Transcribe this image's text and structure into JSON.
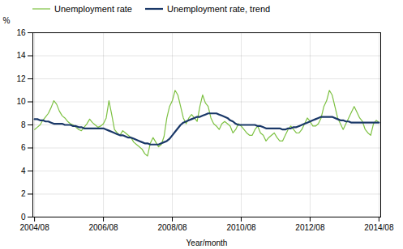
{
  "chart_data": {
    "type": "line",
    "xlabel": "Year/month",
    "ylabel": "%",
    "x": [
      2004.6667,
      2004.7467,
      2004.8267,
      2004.9067,
      2004.9867,
      2005.0667,
      2005.1467,
      2005.2267,
      2005.3067,
      2005.3867,
      2005.4667,
      2005.5467,
      2005.6267,
      2005.7067,
      2005.7867,
      2005.8667,
      2005.9467,
      2006.0267,
      2006.1067,
      2006.1867,
      2006.2667,
      2006.3467,
      2006.4267,
      2006.5067,
      2006.5867,
      2006.6667,
      2006.7467,
      2006.8267,
      2006.9067,
      2006.9867,
      2007.0667,
      2007.1467,
      2007.2267,
      2007.3067,
      2007.3867,
      2007.4667,
      2007.5467,
      2007.6267,
      2007.7067,
      2007.7867,
      2007.8667,
      2007.9467,
      2008.0267,
      2008.1067,
      2008.1867,
      2008.2667,
      2008.3467,
      2008.4267,
      2008.5067,
      2008.5867,
      2008.6667,
      2008.7467,
      2008.8267,
      2008.9067,
      2008.9867,
      2009.0667,
      2009.1467,
      2009.2267,
      2009.3067,
      2009.3867,
      2009.4667,
      2009.5467,
      2009.6267,
      2009.7067,
      2009.7867,
      2009.8667,
      2009.9467,
      2010.0267,
      2010.1067,
      2010.1867,
      2010.2667,
      2010.3467,
      2010.4267,
      2010.5067,
      2010.5867,
      2010.6667,
      2010.7467,
      2010.8267,
      2010.9067,
      2010.9867,
      2011.0667,
      2011.1467,
      2011.2267,
      2011.3067,
      2011.3867,
      2011.4667,
      2011.5467,
      2011.6267,
      2011.7067,
      2011.7867,
      2011.8667,
      2011.9467,
      2012.0267,
      2012.1067,
      2012.1867,
      2012.2667,
      2012.3467,
      2012.4267,
      2012.5067,
      2012.5867,
      2012.6667,
      2012.7467,
      2012.8267,
      2012.9067,
      2012.9867,
      2013.0667,
      2013.1467,
      2013.2267,
      2013.3067,
      2013.3867,
      2013.4667,
      2013.5467,
      2013.6267,
      2013.7067,
      2013.7867,
      2013.8667,
      2013.9467,
      2014.0267,
      2014.1067,
      2014.1867,
      2014.2667,
      2014.3467,
      2014.4267,
      2014.5067,
      2014.5867,
      2014.6667
    ],
    "series": [
      {
        "name": "Unemployment rate",
        "color": "#7dc142",
        "values": [
          7.6,
          7.8,
          8.0,
          8.4,
          8.7,
          9.0,
          9.5,
          10.1,
          9.8,
          9.2,
          8.8,
          8.6,
          8.3,
          8.1,
          8.0,
          7.8,
          7.6,
          7.5,
          7.8,
          8.1,
          8.5,
          8.2,
          8.0,
          7.8,
          7.9,
          8.1,
          8.6,
          10.1,
          8.9,
          7.6,
          7.3,
          7.1,
          7.5,
          7.3,
          7.1,
          6.9,
          6.5,
          6.3,
          6.1,
          5.9,
          5.5,
          5.3,
          6.4,
          6.9,
          6.5,
          6.1,
          6.3,
          7.0,
          8.6,
          9.6,
          10.1,
          11.0,
          10.6,
          9.6,
          8.6,
          8.1,
          8.6,
          8.9,
          8.6,
          8.3,
          9.6,
          10.6,
          9.9,
          9.6,
          8.6,
          8.1,
          7.9,
          7.6,
          8.1,
          8.3,
          8.1,
          7.9,
          7.3,
          7.6,
          8.1,
          7.9,
          7.6,
          7.3,
          7.1,
          7.1,
          7.6,
          7.9,
          7.3,
          7.1,
          6.6,
          6.9,
          7.1,
          7.3,
          6.9,
          6.6,
          6.6,
          7.1,
          7.6,
          7.9,
          7.6,
          7.3,
          7.3,
          7.6,
          8.1,
          8.6,
          8.3,
          7.9,
          7.9,
          8.1,
          8.6,
          9.6,
          10.1,
          11.0,
          10.6,
          9.6,
          8.6,
          8.1,
          7.6,
          8.1,
          8.6,
          9.1,
          9.6,
          9.1,
          8.6,
          8.3,
          7.6,
          7.3,
          7.1,
          8.1,
          8.4,
          8.2
        ]
      },
      {
        "name": "Unemployment rate, trend",
        "color": "#1a3868",
        "values": [
          8.5,
          8.5,
          8.4,
          8.4,
          8.3,
          8.3,
          8.2,
          8.1,
          8.1,
          8.1,
          8.1,
          8.0,
          8.0,
          8.0,
          7.9,
          7.9,
          7.8,
          7.8,
          7.7,
          7.7,
          7.7,
          7.7,
          7.7,
          7.7,
          7.7,
          7.7,
          7.6,
          7.5,
          7.4,
          7.3,
          7.2,
          7.1,
          7.1,
          7.0,
          6.9,
          6.9,
          6.8,
          6.7,
          6.6,
          6.5,
          6.4,
          6.4,
          6.3,
          6.3,
          6.3,
          6.3,
          6.4,
          6.5,
          6.6,
          6.8,
          7.1,
          7.4,
          7.7,
          8.0,
          8.2,
          8.3,
          8.4,
          8.5,
          8.6,
          8.7,
          8.7,
          8.8,
          8.9,
          9.0,
          9.0,
          9.0,
          9.0,
          8.9,
          8.8,
          8.7,
          8.6,
          8.4,
          8.3,
          8.1,
          8.0,
          8.0,
          8.0,
          8.0,
          8.0,
          8.0,
          8.0,
          7.9,
          7.9,
          7.8,
          7.7,
          7.7,
          7.7,
          7.7,
          7.7,
          7.7,
          7.6,
          7.6,
          7.7,
          7.7,
          7.8,
          7.8,
          7.9,
          8.0,
          8.1,
          8.2,
          8.3,
          8.4,
          8.5,
          8.6,
          8.7,
          8.7,
          8.7,
          8.7,
          8.7,
          8.6,
          8.5,
          8.4,
          8.4,
          8.3,
          8.3,
          8.2,
          8.2,
          8.2,
          8.2,
          8.2,
          8.2,
          8.2,
          8.2,
          8.2,
          8.2,
          8.2
        ]
      }
    ],
    "xlim": [
      2004.6167,
      2014.7167
    ],
    "xticks": [
      {
        "value": 2004.6667,
        "label": "2004/08"
      },
      {
        "value": 2006.6667,
        "label": "2006/08"
      },
      {
        "value": 2008.6667,
        "label": "2008/08"
      },
      {
        "value": 2010.6667,
        "label": "2010/08"
      },
      {
        "value": 2012.6667,
        "label": "2012/08"
      },
      {
        "value": 2014.6667,
        "label": "2014/08"
      }
    ],
    "ylim": [
      0,
      16
    ],
    "yticks": [
      0,
      2,
      4,
      6,
      8,
      10,
      12,
      14,
      16
    ],
    "grid": true,
    "legend": "upper left"
  }
}
